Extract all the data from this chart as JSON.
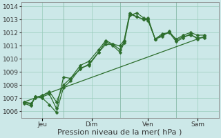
{
  "title": "",
  "xlabel": "Pression niveau de la mer( hPa )",
  "bg_color": "#cce8e8",
  "grid_color": "#99ccbb",
  "line_color": "#2d6e2d",
  "ylim": [
    1005.5,
    1014.3
  ],
  "yticks": [
    1006,
    1007,
    1008,
    1009,
    1010,
    1011,
    1012,
    1013,
    1014
  ],
  "xlim": [
    0,
    14
  ],
  "xtick_positions": [
    1.5,
    5,
    9,
    12.5
  ],
  "xtick_labels": [
    "Jeu",
    "Dim",
    "Ven",
    "Sam"
  ],
  "vlines": [
    3,
    7,
    11
  ],
  "series1_x": [
    0.2,
    0.7,
    1.0,
    1.5,
    2.0,
    2.5,
    3.0,
    3.5,
    4.2,
    4.8,
    5.5,
    6.0,
    6.5,
    7.0,
    7.3,
    7.7,
    8.2,
    8.7,
    9.0,
    9.5,
    10.0,
    10.5,
    11.0,
    11.5,
    12.0,
    12.5,
    13.0
  ],
  "series1_y": [
    1006.7,
    1006.6,
    1007.0,
    1007.2,
    1007.5,
    1006.7,
    1008.0,
    1008.5,
    1009.2,
    1009.6,
    1010.5,
    1011.1,
    1011.1,
    1011.0,
    1011.4,
    1013.5,
    1013.2,
    1013.0,
    1013.1,
    1011.5,
    1011.9,
    1012.0,
    1011.5,
    1011.8,
    1012.0,
    1011.8,
    1011.8
  ],
  "series2_x": [
    0.2,
    0.7,
    1.0,
    1.5,
    2.0,
    2.5,
    3.0,
    3.5,
    4.2,
    4.8,
    5.5,
    6.0,
    6.5,
    7.0,
    7.3,
    7.7,
    8.2,
    8.7,
    9.0,
    9.5,
    10.0,
    10.5,
    11.0,
    11.5,
    12.0,
    12.5,
    13.0
  ],
  "series2_y": [
    1006.7,
    1006.5,
    1007.1,
    1007.0,
    1006.5,
    1005.9,
    1007.8,
    1008.3,
    1009.3,
    1009.5,
    1010.5,
    1011.3,
    1011.0,
    1010.5,
    1011.2,
    1013.3,
    1013.5,
    1013.1,
    1012.9,
    1011.5,
    1011.8,
    1012.0,
    1011.3,
    1011.6,
    1011.9,
    1011.5,
    1011.7
  ],
  "series3_x": [
    0.2,
    0.7,
    1.0,
    1.5,
    2.0,
    2.5,
    3.0,
    3.5,
    4.2,
    4.8,
    5.5,
    6.0,
    6.5,
    7.0,
    7.3,
    7.7,
    8.2,
    8.7,
    9.0,
    9.5,
    10.0,
    10.5,
    11.0,
    11.5,
    12.0,
    12.5,
    13.0
  ],
  "series3_y": [
    1006.6,
    1006.4,
    1007.1,
    1007.1,
    1007.3,
    1006.2,
    1008.6,
    1008.5,
    1009.5,
    1009.8,
    1010.7,
    1011.4,
    1011.1,
    1010.7,
    1011.3,
    1013.4,
    1013.2,
    1013.0,
    1013.0,
    1011.5,
    1011.7,
    1012.1,
    1011.4,
    1011.7,
    1011.8,
    1011.6,
    1011.6
  ],
  "trend_x": [
    0.2,
    13.0
  ],
  "trend_y": [
    1006.7,
    1011.7
  ],
  "xlabel_fontsize": 8,
  "tick_fontsize": 6.5,
  "marker_size": 2.5,
  "linewidth": 0.9
}
